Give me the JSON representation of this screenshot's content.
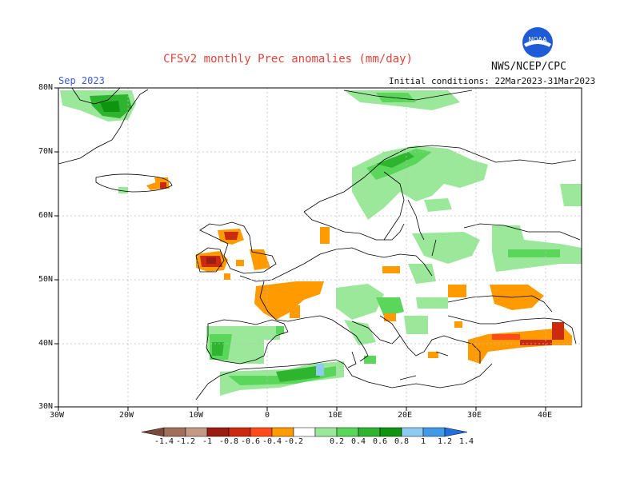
{
  "title": "CFSv2 monthly Prec anomalies (mm/day)",
  "month": "Sep 2023",
  "initial_conditions": "Initial conditions: 22Mar2023-31Mar2023",
  "agency": "NWS/NCEP/CPC",
  "logo_text": "NOAA",
  "lat_labels": [
    "80N",
    "70N",
    "60N",
    "50N",
    "40N",
    "30N"
  ],
  "lon_labels": [
    "30W",
    "20W",
    "10W",
    "0",
    "10E",
    "20E",
    "30E",
    "40E"
  ],
  "colorbar": {
    "labels": [
      "-1.4",
      "-1.2",
      "-1",
      "-0.8",
      "-0.6",
      "-0.4",
      "-0.2",
      "0.2",
      "0.4",
      "0.6",
      "0.8",
      "1",
      "1.2",
      "1.4"
    ],
    "colors": [
      "#7a4a3a",
      "#a0705a",
      "#c49a85",
      "#9b1c10",
      "#cc2a10",
      "#ff4a1a",
      "#ff9a00",
      "#ffffff",
      "#9be89b",
      "#5ad65a",
      "#2fb42f",
      "#0f940f",
      "#8ecbf0",
      "#3f9ae8",
      "#1f6fe0"
    ]
  },
  "colors": {
    "title": "#e0443a",
    "month": "#3a5bd6",
    "green_light": "#9be89b",
    "green": "#5ad65a",
    "green_mid": "#2fb42f",
    "green_dark": "#0f940f",
    "orange": "#ff9a00",
    "red_orange": "#ff4a1a",
    "red": "#cc2a10",
    "dark_red": "#9b1c10",
    "light_blue": "#8ecbf0"
  }
}
